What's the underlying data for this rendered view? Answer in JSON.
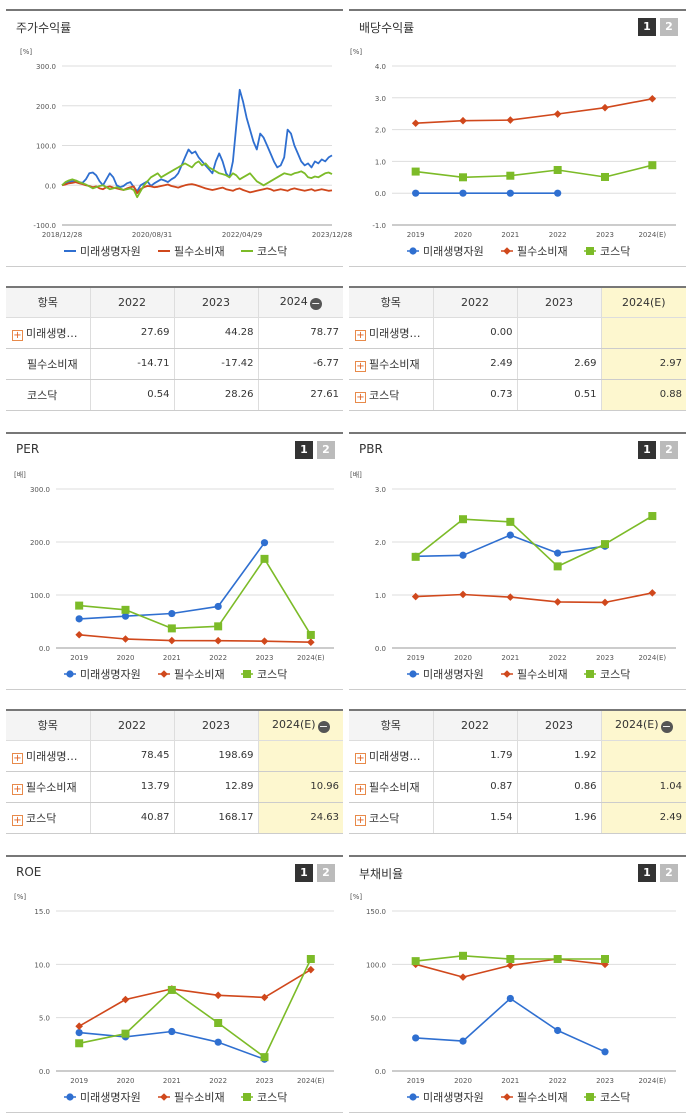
{
  "legend_names": [
    "미래생명자원",
    "필수소비재",
    "코스닥"
  ],
  "colors": {
    "s0": "#2f6fd0",
    "s1": "#d0481c",
    "s2": "#7cbb28",
    "est_bg": "#fdf7cf"
  },
  "badges": {
    "b1": "1",
    "b2": "2"
  },
  "sections": [
    {
      "id": "stock",
      "title": "주가수익률",
      "has_badges": false,
      "chart_data": {
        "type": "line",
        "unit": "[%]",
        "yticks": [
          "300.0",
          "200.0",
          "100.0",
          "0.0",
          "-100.0"
        ],
        "ylim": [
          -100,
          300
        ],
        "xticks": [
          "2018/12/28",
          "2020/08/31",
          "2022/04/29",
          "2023/12/28"
        ],
        "markers": false,
        "series": [
          {
            "name": "미래생명자원",
            "values": [
              0,
              5,
              8,
              10,
              12,
              8,
              6,
              15,
              30,
              32,
              25,
              10,
              0,
              15,
              30,
              20,
              0,
              -5,
              -2,
              5,
              8,
              -5,
              -15,
              0,
              5,
              10,
              -2,
              5,
              10,
              15,
              12,
              8,
              15,
              20,
              30,
              50,
              70,
              90,
              80,
              85,
              70,
              60,
              50,
              40,
              30,
              60,
              80,
              60,
              30,
              20,
              60,
              150,
              240,
              210,
              170,
              140,
              110,
              90,
              130,
              120,
              100,
              80,
              60,
              45,
              50,
              70,
              140,
              130,
              100,
              80,
              60,
              50,
              55,
              45,
              60,
              55,
              65,
              60,
              70,
              75
            ]
          },
          {
            "name": "필수소비재",
            "values": [
              0,
              2,
              5,
              6,
              8,
              5,
              3,
              0,
              -2,
              -5,
              -3,
              -8,
              -10,
              -5,
              -3,
              -6,
              -8,
              -10,
              -12,
              -8,
              -5,
              -3,
              -20,
              -10,
              -5,
              -2,
              -3,
              -5,
              -4,
              -2,
              0,
              2,
              -2,
              -4,
              -6,
              -3,
              0,
              2,
              3,
              1,
              -2,
              -5,
              -8,
              -10,
              -12,
              -10,
              -8,
              -6,
              -10,
              -12,
              -14,
              -10,
              -8,
              -12,
              -15,
              -18,
              -16,
              -14,
              -12,
              -10,
              -8,
              -10,
              -14,
              -12,
              -10,
              -12,
              -14,
              -10,
              -8,
              -10,
              -12,
              -14,
              -12,
              -10,
              -14,
              -12,
              -10,
              -12,
              -14,
              -13
            ]
          },
          {
            "name": "코스닥",
            "values": [
              0,
              8,
              12,
              15,
              12,
              8,
              5,
              2,
              -3,
              -8,
              -5,
              -2,
              0,
              -5,
              -10,
              -8,
              -5,
              -8,
              -12,
              -10,
              -8,
              -12,
              -30,
              -15,
              0,
              10,
              20,
              25,
              30,
              20,
              25,
              30,
              35,
              40,
              45,
              50,
              55,
              50,
              45,
              55,
              60,
              50,
              55,
              45,
              40,
              35,
              30,
              28,
              25,
              20,
              30,
              25,
              15,
              20,
              25,
              30,
              20,
              10,
              5,
              0,
              5,
              10,
              15,
              20,
              25,
              30,
              28,
              26,
              30,
              32,
              35,
              30,
              20,
              18,
              22,
              20,
              25,
              30,
              32,
              28
            ]
          }
        ]
      },
      "table": {
        "header": [
          "항목",
          "2022",
          "2023",
          "2024"
        ],
        "header_icon": "minus-icon",
        "est_col": false,
        "rows": [
          {
            "name": "미래생명…",
            "icon": true,
            "cells": [
              "27.69",
              "44.28",
              "78.77"
            ]
          },
          {
            "name": "필수소비재",
            "icon": false,
            "cells": [
              "-14.71",
              "-17.42",
              "-6.77"
            ]
          },
          {
            "name": "코스닥",
            "icon": false,
            "cells": [
              "0.54",
              "28.26",
              "27.61"
            ]
          }
        ]
      }
    },
    {
      "id": "dividend",
      "title": "배당수익률",
      "has_badges": true,
      "chart_data": {
        "type": "line",
        "unit": "[%]",
        "yticks": [
          "4.0",
          "3.0",
          "2.0",
          "1.0",
          "0.0",
          "-1.0"
        ],
        "ylim": [
          -1,
          4
        ],
        "categories": [
          "2019",
          "2020",
          "2021",
          "2022",
          "2023",
          "2024(E)"
        ],
        "markers": true,
        "series": [
          {
            "name": "미래생명자원",
            "values": [
              0.0,
              0.0,
              0.0,
              0.0,
              null,
              null
            ]
          },
          {
            "name": "필수소비재",
            "values": [
              2.2,
              2.28,
              2.3,
              2.49,
              2.69,
              2.97
            ]
          },
          {
            "name": "코스닥",
            "values": [
              0.68,
              0.5,
              0.55,
              0.73,
              0.51,
              0.88
            ]
          }
        ]
      },
      "table": {
        "header": [
          "항목",
          "2022",
          "2023",
          "2024(E)"
        ],
        "header_icon": null,
        "est_col": true,
        "rows": [
          {
            "name": "미래생명…",
            "icon": true,
            "cells": [
              "0.00",
              "",
              ""
            ]
          },
          {
            "name": "필수소비재",
            "icon": true,
            "cells": [
              "2.49",
              "2.69",
              "2.97"
            ]
          },
          {
            "name": "코스닥",
            "icon": true,
            "cells": [
              "0.73",
              "0.51",
              "0.88"
            ]
          }
        ]
      }
    },
    {
      "id": "per",
      "title": "PER",
      "has_badges": true,
      "chart_data": {
        "type": "line",
        "unit": "[배]",
        "yticks": [
          "300.0",
          "200.0",
          "100.0",
          "0.0"
        ],
        "ylim": [
          0,
          300
        ],
        "categories": [
          "2019",
          "2020",
          "2021",
          "2022",
          "2023",
          "2024(E)"
        ],
        "markers": true,
        "series": [
          {
            "name": "미래생명자원",
            "values": [
              55,
              60,
              65,
              78.45,
              198.69,
              null
            ]
          },
          {
            "name": "필수소비재",
            "values": [
              25,
              17,
              14,
              13.79,
              12.89,
              10.96
            ]
          },
          {
            "name": "코스닥",
            "values": [
              80,
              72,
              37,
              40.87,
              168.17,
              24.63
            ]
          }
        ]
      },
      "table": {
        "header": [
          "항목",
          "2022",
          "2023",
          "2024(E)"
        ],
        "header_icon": "minus-icon",
        "est_col": true,
        "rows": [
          {
            "name": "미래생명…",
            "icon": true,
            "cells": [
              "78.45",
              "198.69",
              ""
            ]
          },
          {
            "name": "필수소비재",
            "icon": true,
            "cells": [
              "13.79",
              "12.89",
              "10.96"
            ]
          },
          {
            "name": "코스닥",
            "icon": true,
            "cells": [
              "40.87",
              "168.17",
              "24.63"
            ]
          }
        ]
      }
    },
    {
      "id": "pbr",
      "title": "PBR",
      "has_badges": true,
      "chart_data": {
        "type": "line",
        "unit": "[배]",
        "yticks": [
          "3.0",
          "2.0",
          "1.0",
          "0.0"
        ],
        "ylim": [
          0,
          3
        ],
        "categories": [
          "2019",
          "2020",
          "2021",
          "2022",
          "2023",
          "2024(E)"
        ],
        "markers": true,
        "series": [
          {
            "name": "미래생명자원",
            "values": [
              1.73,
              1.75,
              2.13,
              1.79,
              1.92,
              null
            ]
          },
          {
            "name": "필수소비재",
            "values": [
              0.97,
              1.01,
              0.96,
              0.87,
              0.86,
              1.04
            ]
          },
          {
            "name": "코스닥",
            "values": [
              1.72,
              2.43,
              2.38,
              1.54,
              1.96,
              2.49
            ]
          }
        ]
      },
      "table": {
        "header": [
          "항목",
          "2022",
          "2023",
          "2024(E)"
        ],
        "header_icon": "minus-icon",
        "est_col": true,
        "rows": [
          {
            "name": "미래생명…",
            "icon": true,
            "cells": [
              "1.79",
              "1.92",
              ""
            ]
          },
          {
            "name": "필수소비재",
            "icon": true,
            "cells": [
              "0.87",
              "0.86",
              "1.04"
            ]
          },
          {
            "name": "코스닥",
            "icon": true,
            "cells": [
              "1.54",
              "1.96",
              "2.49"
            ]
          }
        ]
      }
    },
    {
      "id": "roe",
      "title": "ROE",
      "has_badges": true,
      "chart_data": {
        "type": "line",
        "unit": "[%]",
        "yticks": [
          "15.0",
          "10.0",
          "5.0",
          "0.0"
        ],
        "ylim": [
          0,
          15
        ],
        "categories": [
          "2019",
          "2020",
          "2021",
          "2022",
          "2023",
          "2024(E)"
        ],
        "markers": true,
        "series": [
          {
            "name": "미래생명자원",
            "values": [
              3.6,
              3.2,
              3.7,
              2.7,
              1.1,
              null
            ]
          },
          {
            "name": "필수소비재",
            "values": [
              4.2,
              6.7,
              7.7,
              7.1,
              6.9,
              9.5
            ]
          },
          {
            "name": "코스닥",
            "values": [
              2.6,
              3.5,
              7.6,
              4.5,
              1.3,
              10.5
            ]
          }
        ]
      }
    },
    {
      "id": "debt",
      "title": "부채비율",
      "has_badges": true,
      "chart_data": {
        "type": "line",
        "unit": "[%]",
        "yticks": [
          "150.0",
          "100.0",
          "50.0",
          "0.0"
        ],
        "ylim": [
          0,
          150
        ],
        "categories": [
          "2019",
          "2020",
          "2021",
          "2022",
          "2023",
          "2024(E)"
        ],
        "markers": true,
        "series": [
          {
            "name": "미래생명자원",
            "values": [
              31,
              28,
              68,
              38,
              18,
              null
            ]
          },
          {
            "name": "필수소비재",
            "values": [
              100,
              88,
              99,
              105,
              100,
              null
            ]
          },
          {
            "name": "코스닥",
            "values": [
              103,
              108,
              105,
              105,
              105,
              null
            ]
          }
        ]
      }
    }
  ]
}
